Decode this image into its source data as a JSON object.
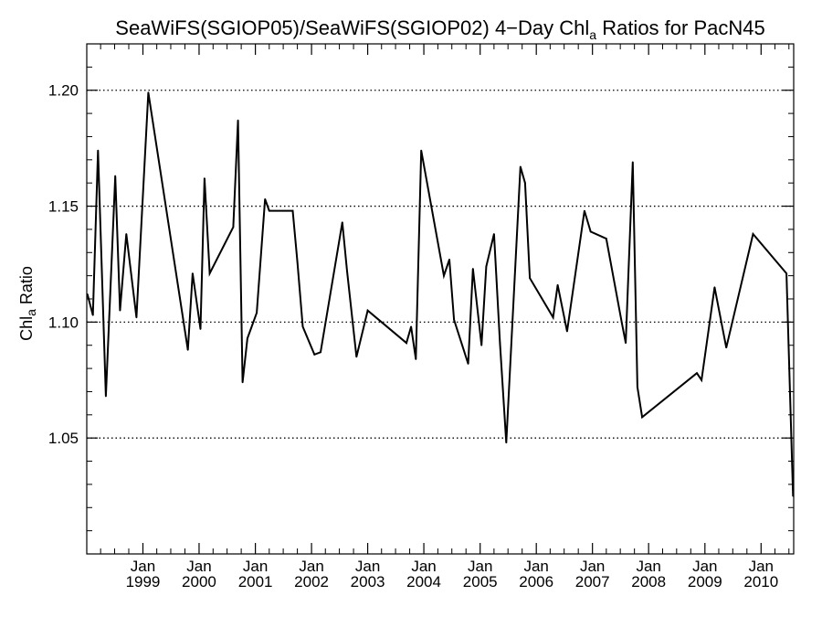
{
  "chart_data": {
    "type": "line",
    "title": {
      "pre": "SeaWiFS(SGIOP05)/SeaWiFS(SGIOP02) 4−Day Chl",
      "sub": "a",
      "post": " Ratios for PacN45"
    },
    "ylabel": {
      "pre": "Chl",
      "sub": "a",
      "post": " Ratio"
    },
    "xlabel": "",
    "xlim": [
      "1998-01-01",
      "2010-08-01"
    ],
    "ylim": [
      1.0,
      1.22
    ],
    "y_ticks": [
      {
        "value": 1.05,
        "label": "1.05"
      },
      {
        "value": 1.1,
        "label": "1.10"
      },
      {
        "value": 1.15,
        "label": "1.15"
      },
      {
        "value": 1.2,
        "label": "1.20"
      }
    ],
    "x_ticks": [
      {
        "date": "1999-01-01",
        "month": "Jan",
        "year": "1999"
      },
      {
        "date": "2000-01-01",
        "month": "Jan",
        "year": "2000"
      },
      {
        "date": "2001-01-01",
        "month": "Jan",
        "year": "2001"
      },
      {
        "date": "2002-01-01",
        "month": "Jan",
        "year": "2002"
      },
      {
        "date": "2003-01-01",
        "month": "Jan",
        "year": "2003"
      },
      {
        "date": "2004-01-01",
        "month": "Jan",
        "year": "2004"
      },
      {
        "date": "2005-01-01",
        "month": "Jan",
        "year": "2005"
      },
      {
        "date": "2006-01-01",
        "month": "Jan",
        "year": "2006"
      },
      {
        "date": "2007-01-01",
        "month": "Jan",
        "year": "2007"
      },
      {
        "date": "2008-01-01",
        "month": "Jan",
        "year": "2008"
      },
      {
        "date": "2009-01-01",
        "month": "Jan",
        "year": "2009"
      },
      {
        "date": "2010-01-01",
        "month": "Jan",
        "year": "2010"
      }
    ],
    "grid": "horizontal dotted at major y ticks",
    "series": [
      {
        "color": "#000000",
        "points": [
          [
            "1998-01-05",
            1.112
          ],
          [
            "1998-02-10",
            1.103
          ],
          [
            "1998-03-15",
            1.174
          ],
          [
            "1998-05-05",
            1.068
          ],
          [
            "1998-07-05",
            1.163
          ],
          [
            "1998-08-05",
            1.105
          ],
          [
            "1998-09-15",
            1.138
          ],
          [
            "1998-11-20",
            1.102
          ],
          [
            "1999-02-05",
            1.199
          ],
          [
            "1999-10-20",
            1.088
          ],
          [
            "1999-11-20",
            1.121
          ],
          [
            "2000-01-10",
            1.097
          ],
          [
            "2000-02-05",
            1.162
          ],
          [
            "2000-03-10",
            1.121
          ],
          [
            "2000-08-10",
            1.141
          ],
          [
            "2000-09-10",
            1.187
          ],
          [
            "2000-10-10",
            1.074
          ],
          [
            "2000-11-10",
            1.093
          ],
          [
            "2001-01-10",
            1.104
          ],
          [
            "2001-03-05",
            1.153
          ],
          [
            "2001-04-01",
            1.148
          ],
          [
            "2001-09-01",
            1.148
          ],
          [
            "2001-10-01",
            1.126
          ],
          [
            "2001-11-05",
            1.098
          ],
          [
            "2002-01-20",
            1.086
          ],
          [
            "2002-03-01",
            1.087
          ],
          [
            "2002-07-20",
            1.143
          ],
          [
            "2002-08-20",
            1.122
          ],
          [
            "2002-10-20",
            1.085
          ],
          [
            "2003-01-01",
            1.105
          ],
          [
            "2003-09-10",
            1.091
          ],
          [
            "2003-10-10",
            1.098
          ],
          [
            "2003-11-10",
            1.084
          ],
          [
            "2003-12-15",
            1.174
          ],
          [
            "2004-05-10",
            1.12
          ],
          [
            "2004-06-15",
            1.127
          ],
          [
            "2004-07-15",
            1.101
          ],
          [
            "2004-10-15",
            1.082
          ],
          [
            "2004-11-15",
            1.123
          ],
          [
            "2005-01-10",
            1.09
          ],
          [
            "2005-02-10",
            1.124
          ],
          [
            "2005-04-01",
            1.138
          ],
          [
            "2005-05-10",
            1.091
          ],
          [
            "2005-06-20",
            1.048
          ],
          [
            "2005-09-20",
            1.167
          ],
          [
            "2005-10-20",
            1.16
          ],
          [
            "2005-11-20",
            1.119
          ],
          [
            "2006-04-20",
            1.102
          ],
          [
            "2006-05-20",
            1.116
          ],
          [
            "2006-07-20",
            1.096
          ],
          [
            "2006-11-10",
            1.148
          ],
          [
            "2006-12-20",
            1.139
          ],
          [
            "2007-04-01",
            1.136
          ],
          [
            "2007-07-10",
            1.1
          ],
          [
            "2007-08-05",
            1.091
          ],
          [
            "2007-09-20",
            1.169
          ],
          [
            "2007-10-20",
            1.072
          ],
          [
            "2007-11-20",
            1.059
          ],
          [
            "2008-11-10",
            1.078
          ],
          [
            "2008-12-10",
            1.075
          ],
          [
            "2009-03-05",
            1.115
          ],
          [
            "2009-05-20",
            1.089
          ],
          [
            "2009-11-10",
            1.138
          ],
          [
            "2010-06-15",
            1.121
          ],
          [
            "2010-07-28",
            1.025
          ]
        ]
      }
    ]
  }
}
